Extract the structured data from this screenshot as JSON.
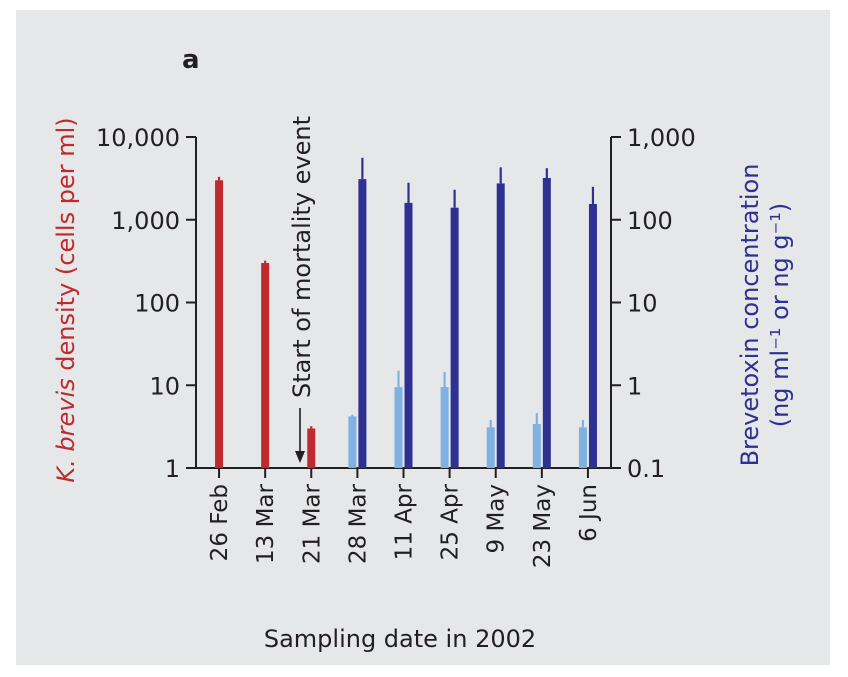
{
  "chart_data": {
    "type": "bar",
    "panel_label": "a",
    "categories": [
      "26 Feb",
      "13 Mar",
      "21 Mar",
      "28 Mar",
      "11 Apr",
      "25 Apr",
      "9 May",
      "23 May",
      "6 Jun"
    ],
    "xlabel": "Sampling date in 2002",
    "left_axis": {
      "label_italic": "K. brevis",
      "label_rest": " density (cells per ml)",
      "scale": "log",
      "ylim": [
        1,
        10000
      ],
      "ticks": [
        "1",
        "10",
        "100",
        "1,000",
        "10,000"
      ],
      "tick_values": [
        1,
        10,
        100,
        1000,
        10000
      ],
      "color": "#be2a2e"
    },
    "right_axis": {
      "label_line1": "Brevetoxin concentration",
      "label_line2": "(ng ml⁻¹ or ng g⁻¹)",
      "scale": "log",
      "ylim": [
        0.1,
        1000
      ],
      "ticks": [
        "0.1",
        "1",
        "10",
        "100",
        "1,000"
      ],
      "tick_values": [
        0.1,
        1,
        10,
        100,
        1000
      ],
      "color": "#2e3192"
    },
    "series": [
      {
        "axis": "left",
        "color": "#be2a2e",
        "values": [
          3000,
          300,
          3,
          null,
          null,
          null,
          null,
          null,
          null
        ],
        "errors": [
          3300,
          320,
          3.2,
          null,
          null,
          null,
          null,
          null,
          null
        ]
      },
      {
        "axis": "right",
        "color": "#7fb2e2",
        "values": [
          null,
          null,
          null,
          0.42,
          0.95,
          0.95,
          0.31,
          0.34,
          0.31
        ],
        "errors": [
          null,
          null,
          null,
          0.44,
          1.5,
          1.45,
          0.38,
          0.46,
          0.38
        ]
      },
      {
        "axis": "right",
        "color": "#2e3192",
        "values": [
          null,
          null,
          null,
          310,
          160,
          140,
          275,
          320,
          155
        ],
        "errors": [
          null,
          null,
          null,
          560,
          280,
          230,
          430,
          420,
          250
        ]
      }
    ],
    "annotations": [
      {
        "text": "Start of mortality event",
        "category": "21 Mar"
      }
    ]
  }
}
